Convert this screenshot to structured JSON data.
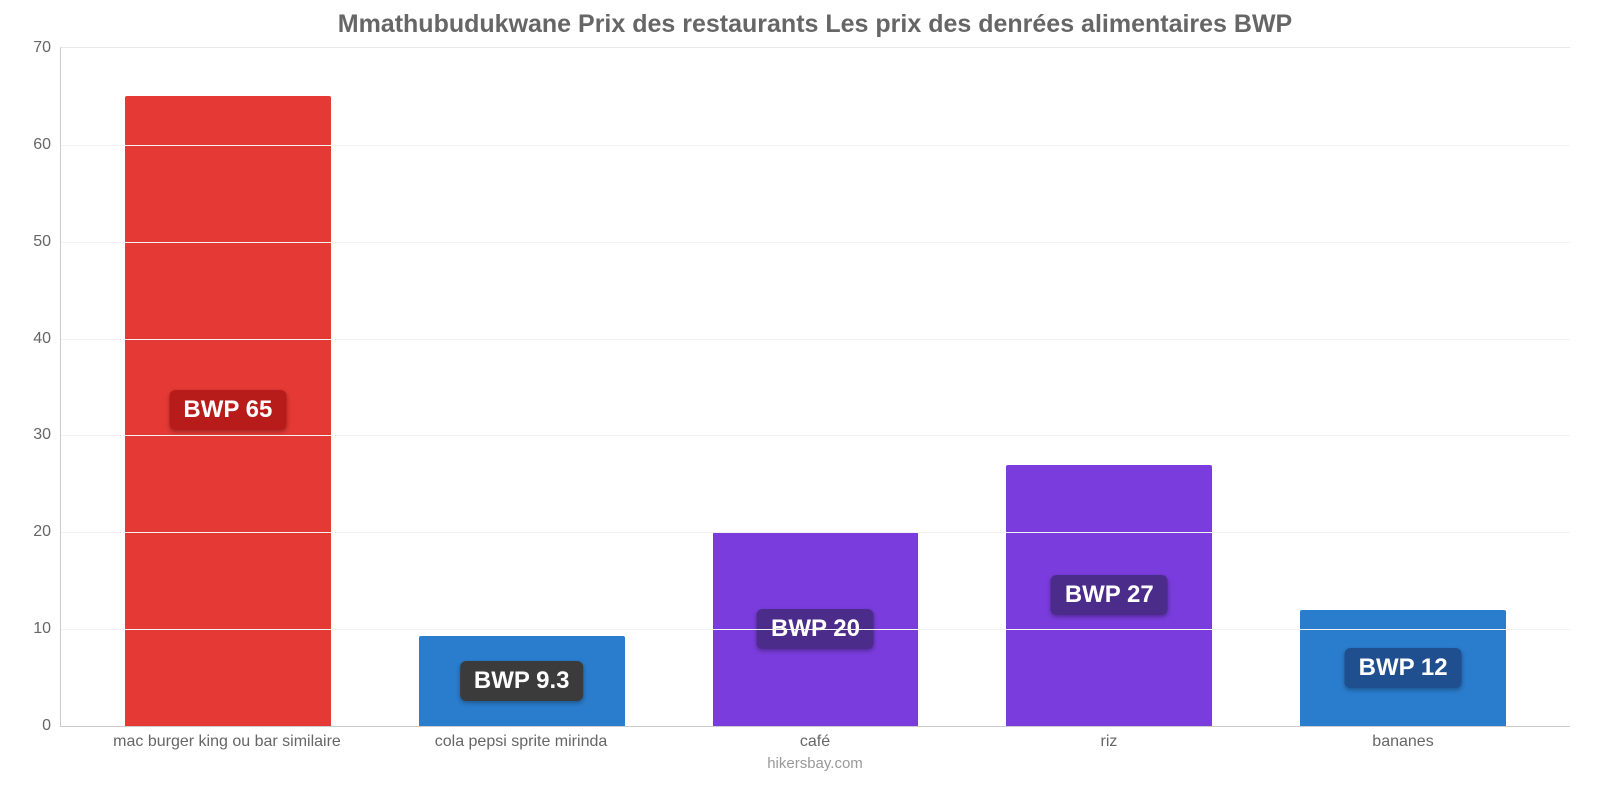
{
  "chart": {
    "type": "bar",
    "title": "Mmathubudukwane Prix des restaurants Les prix des denrées alimentaires BWP",
    "title_fontsize": 25,
    "title_color": "#666666",
    "background_color": "#ffffff",
    "grid_color": "#f3f3f3",
    "axis_color": "#cccccc",
    "tick_color": "#666666",
    "tick_fontsize": 16,
    "ylim": [
      0,
      70
    ],
    "ytick_step": 10,
    "yticks": [
      0,
      10,
      20,
      30,
      40,
      50,
      60,
      70
    ],
    "bar_width_pct": 70,
    "categories": [
      "mac burger king ou bar similaire",
      "cola pepsi sprite mirinda",
      "café",
      "riz",
      "bananes"
    ],
    "values": [
      65,
      9.3,
      20,
      27,
      12
    ],
    "bar_colors": [
      "#e53935",
      "#2a7ccd",
      "#7a3cdc",
      "#7a3cdc",
      "#2a7ccd"
    ],
    "value_labels": [
      "BWP 65",
      "BWP 9.3",
      "BWP 20",
      "BWP 27",
      "BWP 12"
    ],
    "badge_bg_colors": [
      "#b71c1a",
      "#3b3b3b",
      "#4b2c8a",
      "#4b2c8a",
      "#1f4f8f"
    ],
    "badge_text_color": "#ffffff",
    "badge_fontsize": 24,
    "attribution": "hikersbay.com",
    "attribution_color": "#999999",
    "attribution_fontsize": 15
  }
}
